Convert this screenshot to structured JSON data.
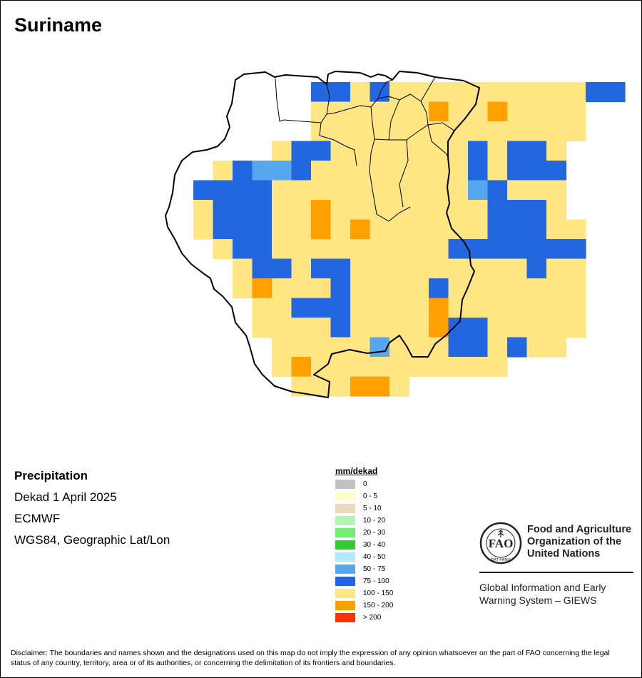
{
  "title": "Suriname",
  "info": {
    "variable": "Precipitation",
    "period": "Dekad 1 April 2025",
    "source": "ECMWF",
    "projection": "WGS84, Geographic Lat/Lon"
  },
  "legend": {
    "title": "mm/dekad",
    "classes": [
      {
        "label": "0",
        "color": "#c0c0c0"
      },
      {
        "label": "0 - 5",
        "color": "#ffffcc"
      },
      {
        "label": "5 - 10",
        "color": "#ead9bb"
      },
      {
        "label": "10 - 20",
        "color": "#b4f5b4"
      },
      {
        "label": "20 - 30",
        "color": "#73ee73"
      },
      {
        "label": "30 - 40",
        "color": "#33cc33"
      },
      {
        "label": "40 - 50",
        "color": "#b0ecf8"
      },
      {
        "label": "50 - 75",
        "color": "#55a8f0"
      },
      {
        "label": "75 - 100",
        "color": "#2266e0"
      },
      {
        "label": "100 - 150",
        "color": "#ffe682"
      },
      {
        "label": "150 - 200",
        "color": "#ff9f00"
      },
      {
        "label": "> 200",
        "color": "#ff3300"
      }
    ]
  },
  "grid": {
    "class_codes": {
      "Y": "100 - 150",
      "B": "75 - 100",
      "L": "50 - 75",
      "O": "150 - 200"
    },
    "rows": [
      "........BBYBYYYYYYYYYYBB",
      "........YYYYYYOYYOYYYY..",
      "........YYYYYYYYYYYYYY..",
      "......YBBYYYYYYYBYBBY...",
      "...YBLLBYYYYYYYYBYBBB...",
      "..BBBBYYYYYYYYYYLBYYY...",
      "..YBBBYYOYYYYYYYYBBBY...",
      "..YBBBYYOYOYYYYYYBBBYY..",
      "...YBBYYYYYYYYYBBBBBBB..",
      "....YBBYBBYYYYYYYYYBYY..",
      "....YOYYYBYYYYBYYYYYYY..",
      ".....YYBBBYYYYOYYYYYYY..",
      ".....YYYYBYYYYOBBYYYYY..",
      "......YYYYYLYYYBBYBYY...",
      "......YOYYYYYYYYYY......",
      ".......YYYOOY..........."
    ]
  },
  "boundaries": {
    "Y": "Suriname country boundary",
    "district": "Suriname district boundaries"
  },
  "logo": {
    "lines": [
      "Food and Agriculture",
      "Organization of the",
      "United Nations"
    ],
    "acronym": "FAO",
    "motto": "FIAT PANIS"
  },
  "giews": {
    "lines": [
      "Global Information and Early",
      "Warning System – GIEWS"
    ]
  },
  "disclaimer": "Disclaimer: The boundaries and names shown and the designations used on this map do not imply the expression of any opinion whatsoever on the part of FAO concerning the legal status of any country, territory, area or of its authorities, or concerning the delimitation of its frontiers and boundaries."
}
